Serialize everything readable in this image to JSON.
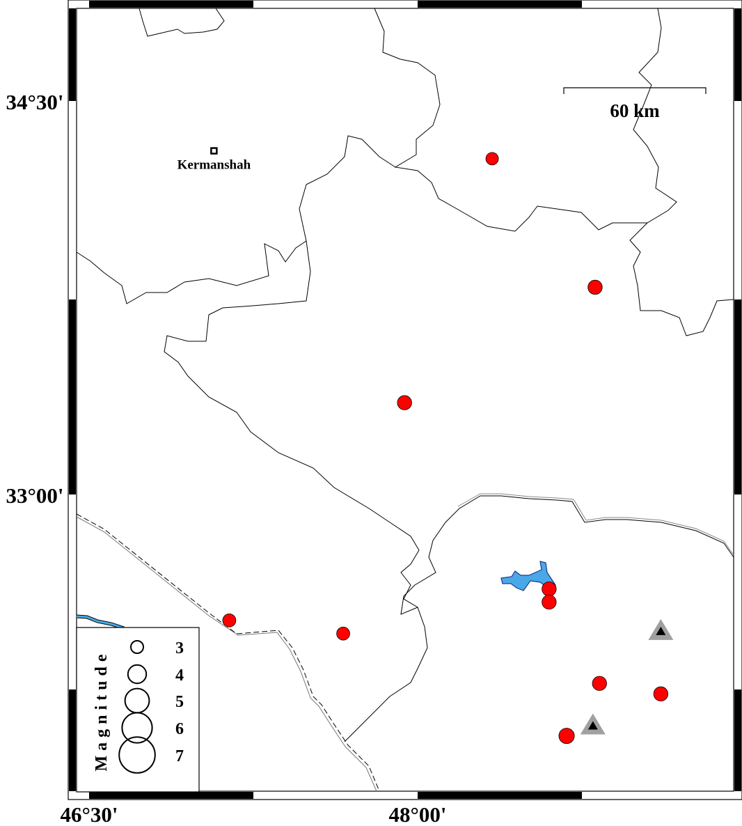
{
  "map": {
    "lon_range": [
      46.47,
      49.49
    ],
    "lat_range": [
      31.98,
      34.86
    ],
    "ticks": {
      "lat": [
        {
          "value": 34.5,
          "label": "34°30'"
        },
        {
          "value": 33.0,
          "label": "33°00'"
        }
      ],
      "lon": [
        {
          "value": 46.5,
          "label": "46°30'"
        },
        {
          "value": 48.0,
          "label": "48°00'"
        }
      ]
    },
    "colors": {
      "event": "#ff0000",
      "station": "#a0a0a0",
      "water": "#4aa8e8",
      "border": "#000000"
    }
  },
  "city": {
    "name": "Kermanshah",
    "lon": 47.07,
    "lat": 34.31
  },
  "scale_bar": {
    "label": "60 km"
  },
  "events": [
    {
      "lon": 48.34,
      "lat": 34.28,
      "mag": 3.0
    },
    {
      "lon": 48.81,
      "lat": 33.79,
      "mag": 3.3
    },
    {
      "lon": 47.94,
      "lat": 33.35,
      "mag": 3.3
    },
    {
      "lon": 47.14,
      "lat": 32.52,
      "mag": 3.1
    },
    {
      "lon": 47.66,
      "lat": 32.47,
      "mag": 3.1
    },
    {
      "lon": 48.6,
      "lat": 32.64,
      "mag": 3.3
    },
    {
      "lon": 48.6,
      "lat": 32.59,
      "mag": 3.3
    },
    {
      "lon": 48.83,
      "lat": 32.28,
      "mag": 3.3
    },
    {
      "lon": 49.11,
      "lat": 32.24,
      "mag": 3.3
    },
    {
      "lon": 48.68,
      "lat": 32.08,
      "mag": 3.5
    }
  ],
  "stations": [
    {
      "lon": 49.11,
      "lat": 32.48
    },
    {
      "lon": 48.8,
      "lat": 32.12
    }
  ],
  "legend": {
    "title": "Magnitude",
    "items": [
      {
        "mag": 3,
        "label": "3"
      },
      {
        "mag": 4,
        "label": "4"
      },
      {
        "mag": 5,
        "label": "5"
      },
      {
        "mag": 6,
        "label": "6"
      },
      {
        "mag": 7,
        "label": "7"
      }
    ]
  }
}
